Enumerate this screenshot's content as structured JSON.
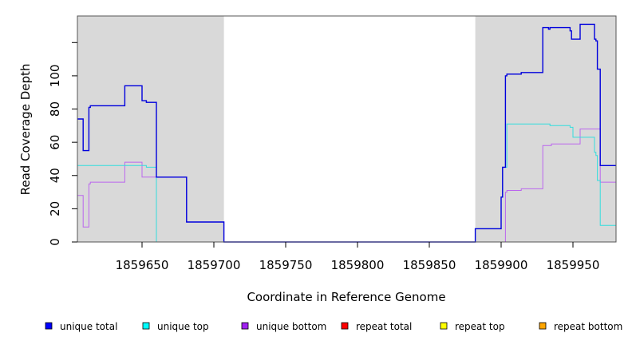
{
  "chart_data": {
    "type": "line",
    "step": true,
    "xlabel": "Coordinate in Reference Genome",
    "ylabel": "Read Coverage Depth",
    "xlim": [
      1859605,
      1859980
    ],
    "ylim": [
      0,
      136
    ],
    "x_ticks": [
      1859650,
      1859700,
      1859750,
      1859800,
      1859850,
      1859900,
      1859950
    ],
    "y_ticks": [
      0,
      20,
      40,
      60,
      80,
      100
    ],
    "unlabeled_y_ticks": [
      120
    ],
    "shaded_regions": [
      [
        1859605,
        1859707
      ],
      [
        1859882,
        1859980
      ]
    ],
    "shade_color": "#d9d9d9",
    "series": [
      {
        "name": "unique total",
        "color": "#0000dd",
        "points": [
          [
            1859605,
            74
          ],
          [
            1859609,
            55
          ],
          [
            1859613,
            81
          ],
          [
            1859614,
            82
          ],
          [
            1859638,
            94
          ],
          [
            1859650,
            85
          ],
          [
            1859653,
            84
          ],
          [
            1859660,
            39
          ],
          [
            1859681,
            12
          ],
          [
            1859707,
            0
          ],
          [
            1859882,
            8
          ],
          [
            1859900,
            27
          ],
          [
            1859901,
            45
          ],
          [
            1859903,
            100
          ],
          [
            1859904,
            101
          ],
          [
            1859914,
            102
          ],
          [
            1859929,
            129
          ],
          [
            1859933,
            128
          ],
          [
            1859934,
            129
          ],
          [
            1859948,
            127
          ],
          [
            1859949,
            122
          ],
          [
            1859955,
            131
          ],
          [
            1859965,
            122
          ],
          [
            1859966,
            121
          ],
          [
            1859967,
            104
          ],
          [
            1859969,
            46
          ],
          [
            1859980,
            46
          ]
        ]
      },
      {
        "name": "unique top",
        "color": "#33dddd",
        "points": [
          [
            1859605,
            46
          ],
          [
            1859650,
            46
          ],
          [
            1859653,
            45
          ],
          [
            1859660,
            0
          ],
          [
            1859882,
            8
          ],
          [
            1859900,
            27
          ],
          [
            1859901,
            45
          ],
          [
            1859904,
            71
          ],
          [
            1859934,
            70
          ],
          [
            1859948,
            69
          ],
          [
            1859950,
            63
          ],
          [
            1859965,
            54
          ],
          [
            1859966,
            52
          ],
          [
            1859967,
            37
          ],
          [
            1859969,
            10
          ],
          [
            1859980,
            10
          ]
        ]
      },
      {
        "name": "unique bottom",
        "color": "#bb66ee",
        "points": [
          [
            1859605,
            28
          ],
          [
            1859609,
            9
          ],
          [
            1859613,
            35
          ],
          [
            1859614,
            36
          ],
          [
            1859638,
            48
          ],
          [
            1859650,
            39
          ],
          [
            1859660,
            39
          ],
          [
            1859681,
            12
          ],
          [
            1859707,
            0
          ],
          [
            1859903,
            30
          ],
          [
            1859904,
            31
          ],
          [
            1859914,
            32
          ],
          [
            1859929,
            58
          ],
          [
            1859935,
            59
          ],
          [
            1859955,
            68
          ],
          [
            1859969,
            36
          ],
          [
            1859980,
            36
          ]
        ]
      },
      {
        "name": "repeat total",
        "color": "#ff0000",
        "points": [
          [
            1859605,
            0
          ],
          [
            1859980,
            0
          ]
        ]
      },
      {
        "name": "repeat top",
        "color": "#ffff00",
        "points": [
          [
            1859605,
            0
          ],
          [
            1859980,
            0
          ]
        ]
      },
      {
        "name": "repeat bottom",
        "color": "#ff9900",
        "points": [
          [
            1859605,
            0
          ],
          [
            1859980,
            0
          ]
        ]
      }
    ],
    "legend": {
      "position": "bottom",
      "entries": [
        {
          "label": "unique total",
          "color": "#0000ff"
        },
        {
          "label": "unique top",
          "color": "#00ffff"
        },
        {
          "label": "unique bottom",
          "color": "#a020f0"
        },
        {
          "label": "repeat total",
          "color": "#ff0000"
        },
        {
          "label": "repeat top",
          "color": "#ffff00"
        },
        {
          "label": "repeat bottom",
          "color": "#ffa500"
        }
      ]
    }
  }
}
